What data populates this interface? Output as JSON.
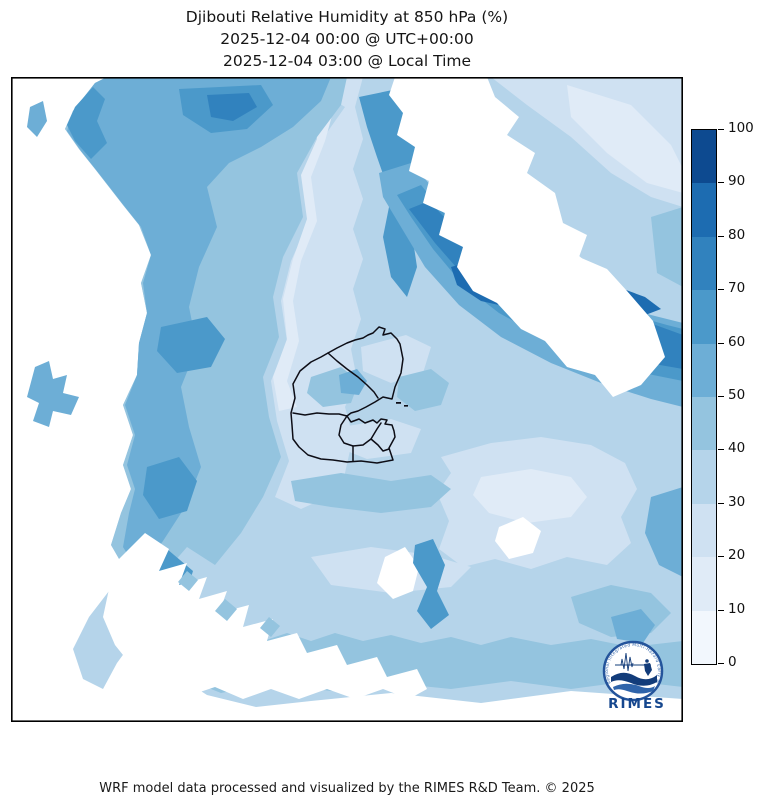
{
  "header": {
    "line1": "Djibouti Relative Humidity at 850 hPa (%)",
    "line2": "2025-12-04 00:00 @ UTC+00:00",
    "line3": "2025-12-04 03:00 @ Local Time"
  },
  "colorbar": {
    "min": 0,
    "max": 100,
    "ticks": [
      0,
      10,
      20,
      30,
      40,
      50,
      60,
      70,
      80,
      90,
      100
    ],
    "bin_colors": [
      "#f2f7fd",
      "#e0ebf7",
      "#cfe1f2",
      "#b5d4ea",
      "#94c4df",
      "#6daed6",
      "#4b99ca",
      "#3182be",
      "#1d6cb1",
      "#0d4a90"
    ]
  },
  "logo": {
    "wordmark": "RIMES",
    "ring_text": "Regional Integrated Multi-Hazard Early Warning System"
  },
  "footer": {
    "credit": "WRF model data processed and visualized by the RIMES R&D Team. © 2025"
  },
  "chart_data": {
    "type": "filled_contour_map",
    "title": "Djibouti Relative Humidity at 850 hPa (%)",
    "variable": "Relative Humidity",
    "level": "850 hPa",
    "units": "%",
    "valid_time_utc": "2025-12-04 00:00 @ UTC+00:00",
    "valid_time_local": "2025-12-04 03:00 @ Local Time",
    "colormap": "Blues",
    "colorbar_range": [
      0,
      100
    ],
    "colorbar_interval": 10,
    "legend_position": "right",
    "overlay": "Djibouti national and regional boundaries",
    "masked_regions_color": "#ffffff"
  }
}
